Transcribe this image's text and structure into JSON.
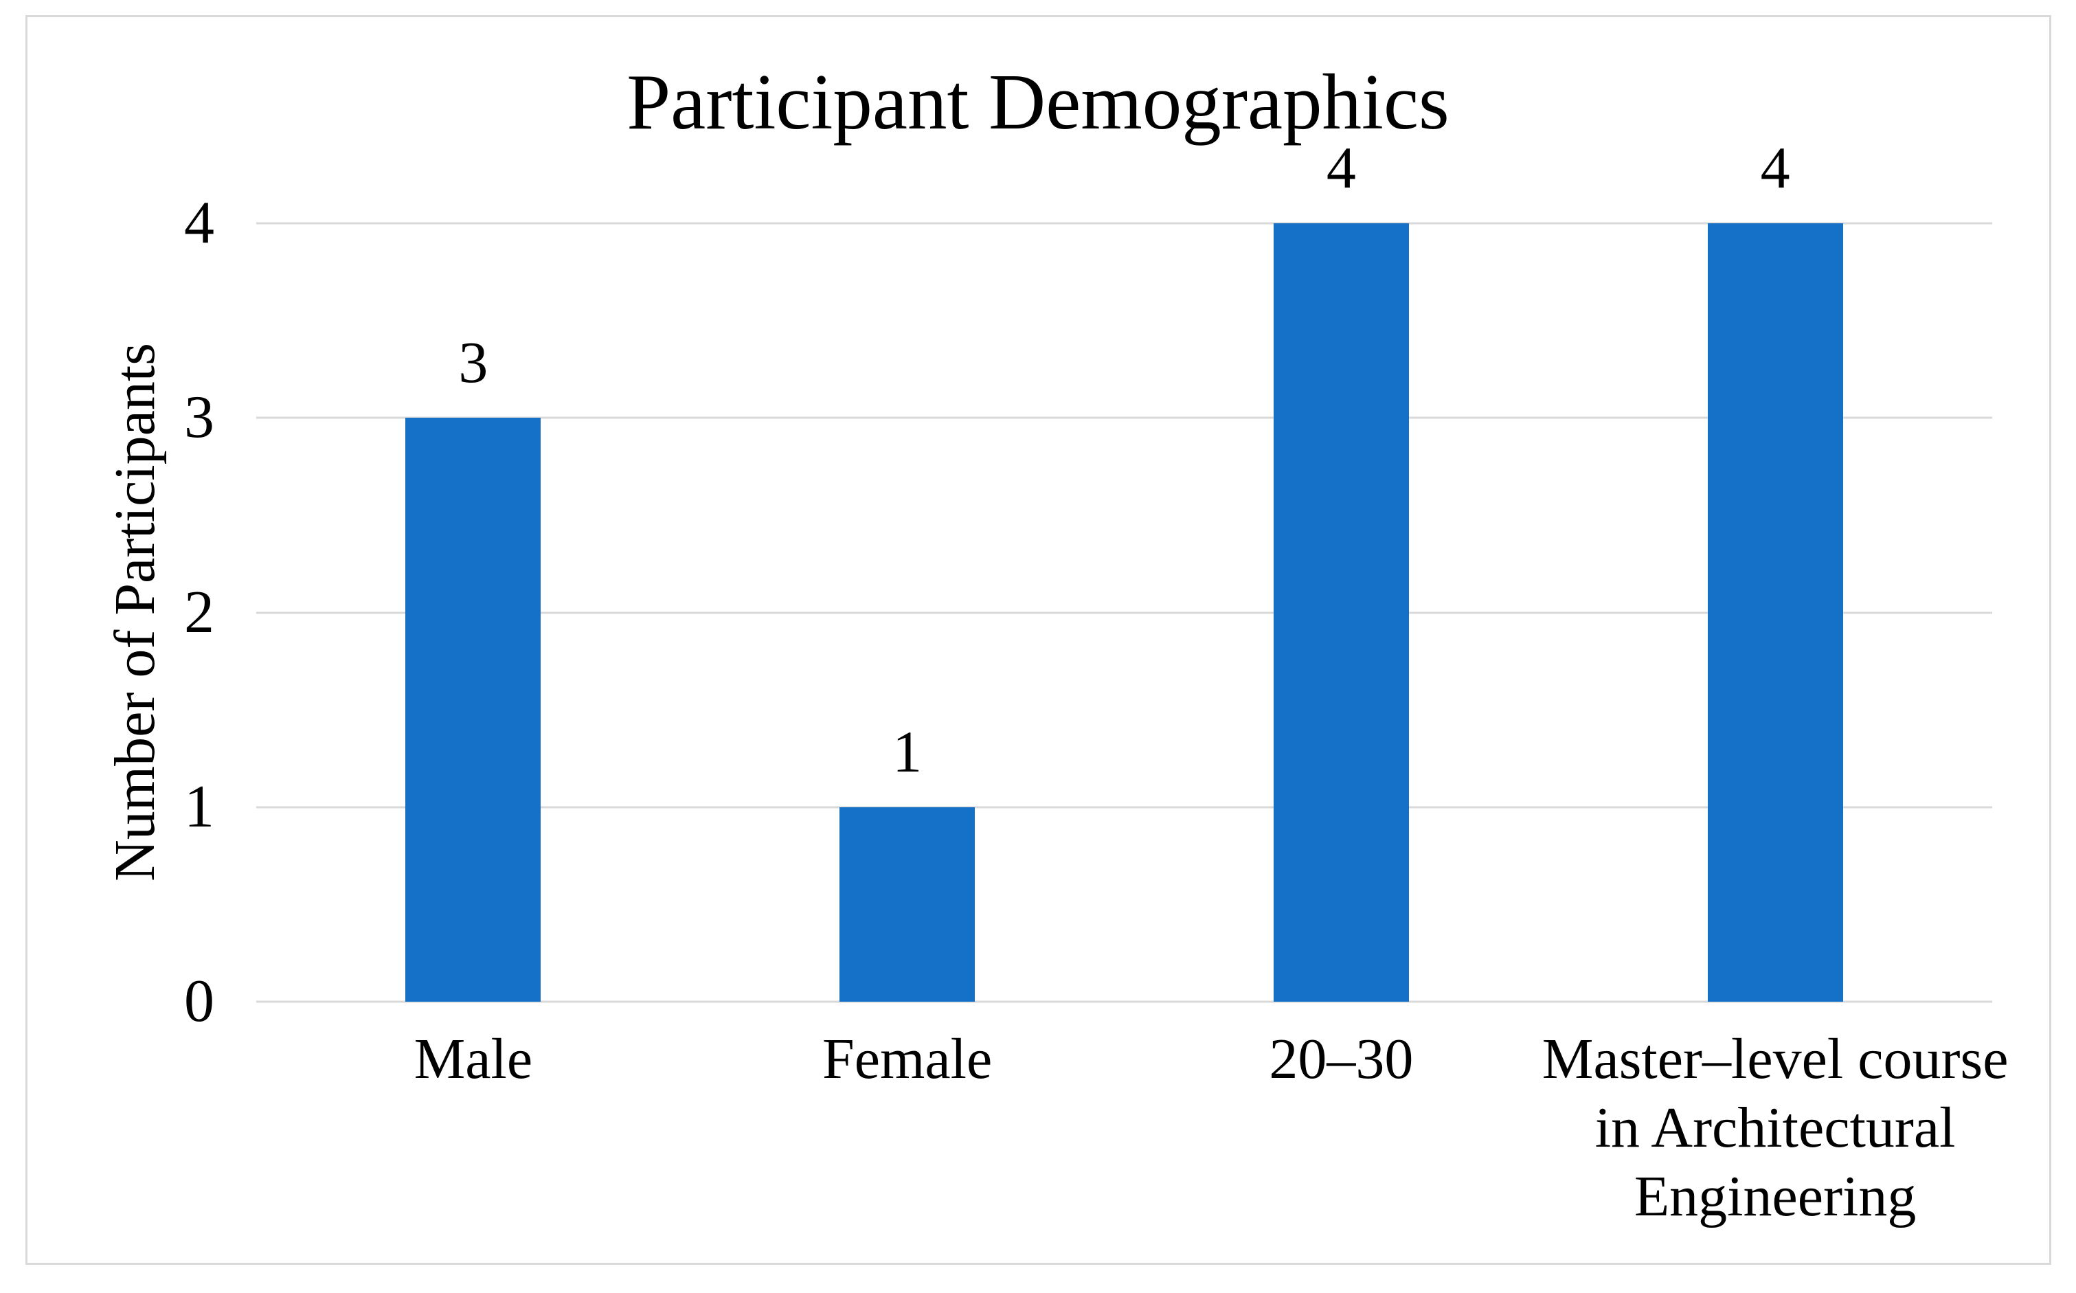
{
  "figure": {
    "background_color": "#FFFFFF",
    "frame_border_color": "#D9D9D9"
  },
  "chart_data": {
    "type": "bar",
    "title": "Participant Demographics",
    "ylabel": "Number of Participants",
    "xlabel": "",
    "categories": [
      "Male",
      "Female",
      "20–30",
      "Master–level course\nin Architectural\nEngineering"
    ],
    "values": [
      3,
      1,
      4,
      4
    ],
    "data_labels": [
      "3",
      "1",
      "4",
      "4"
    ],
    "yticks": [
      0,
      1,
      2,
      3,
      4
    ],
    "ylim": [
      0,
      4
    ],
    "grid": true,
    "legend": false,
    "bar_color": "#1571C8",
    "gridline_color": "#D9D9D9",
    "text_color": "#000000"
  }
}
